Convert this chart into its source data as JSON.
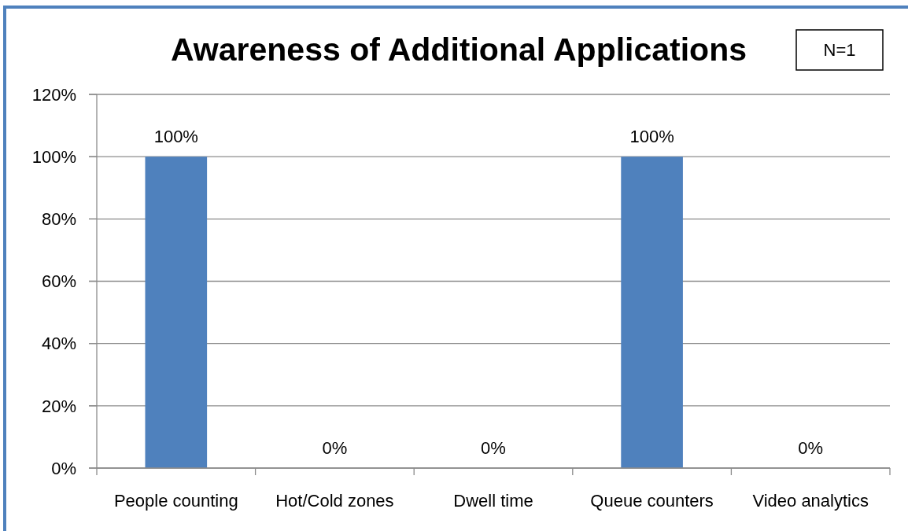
{
  "chart_data": {
    "type": "bar",
    "title": "Awareness of Additional Applications",
    "annotations": [
      "N=1"
    ],
    "categories": [
      "People counting",
      "Hot/Cold zones",
      "Dwell time",
      "Queue counters",
      "Video analytics"
    ],
    "values": [
      100,
      0,
      0,
      100,
      0
    ],
    "color": "#4f81bd",
    "value_labels": [
      "100%",
      "0%",
      "0%",
      "100%",
      "0%"
    ],
    "ylim": [
      0,
      120
    ],
    "yticks": [
      {
        "value": 0,
        "label": "0%"
      },
      {
        "value": 20,
        "label": "20%"
      },
      {
        "value": 40,
        "label": "40%"
      },
      {
        "value": 60,
        "label": "60%"
      },
      {
        "value": 80,
        "label": "80%"
      },
      {
        "value": 100,
        "label": "100%"
      },
      {
        "value": 120,
        "label": "120%"
      }
    ],
    "grid": "y"
  }
}
